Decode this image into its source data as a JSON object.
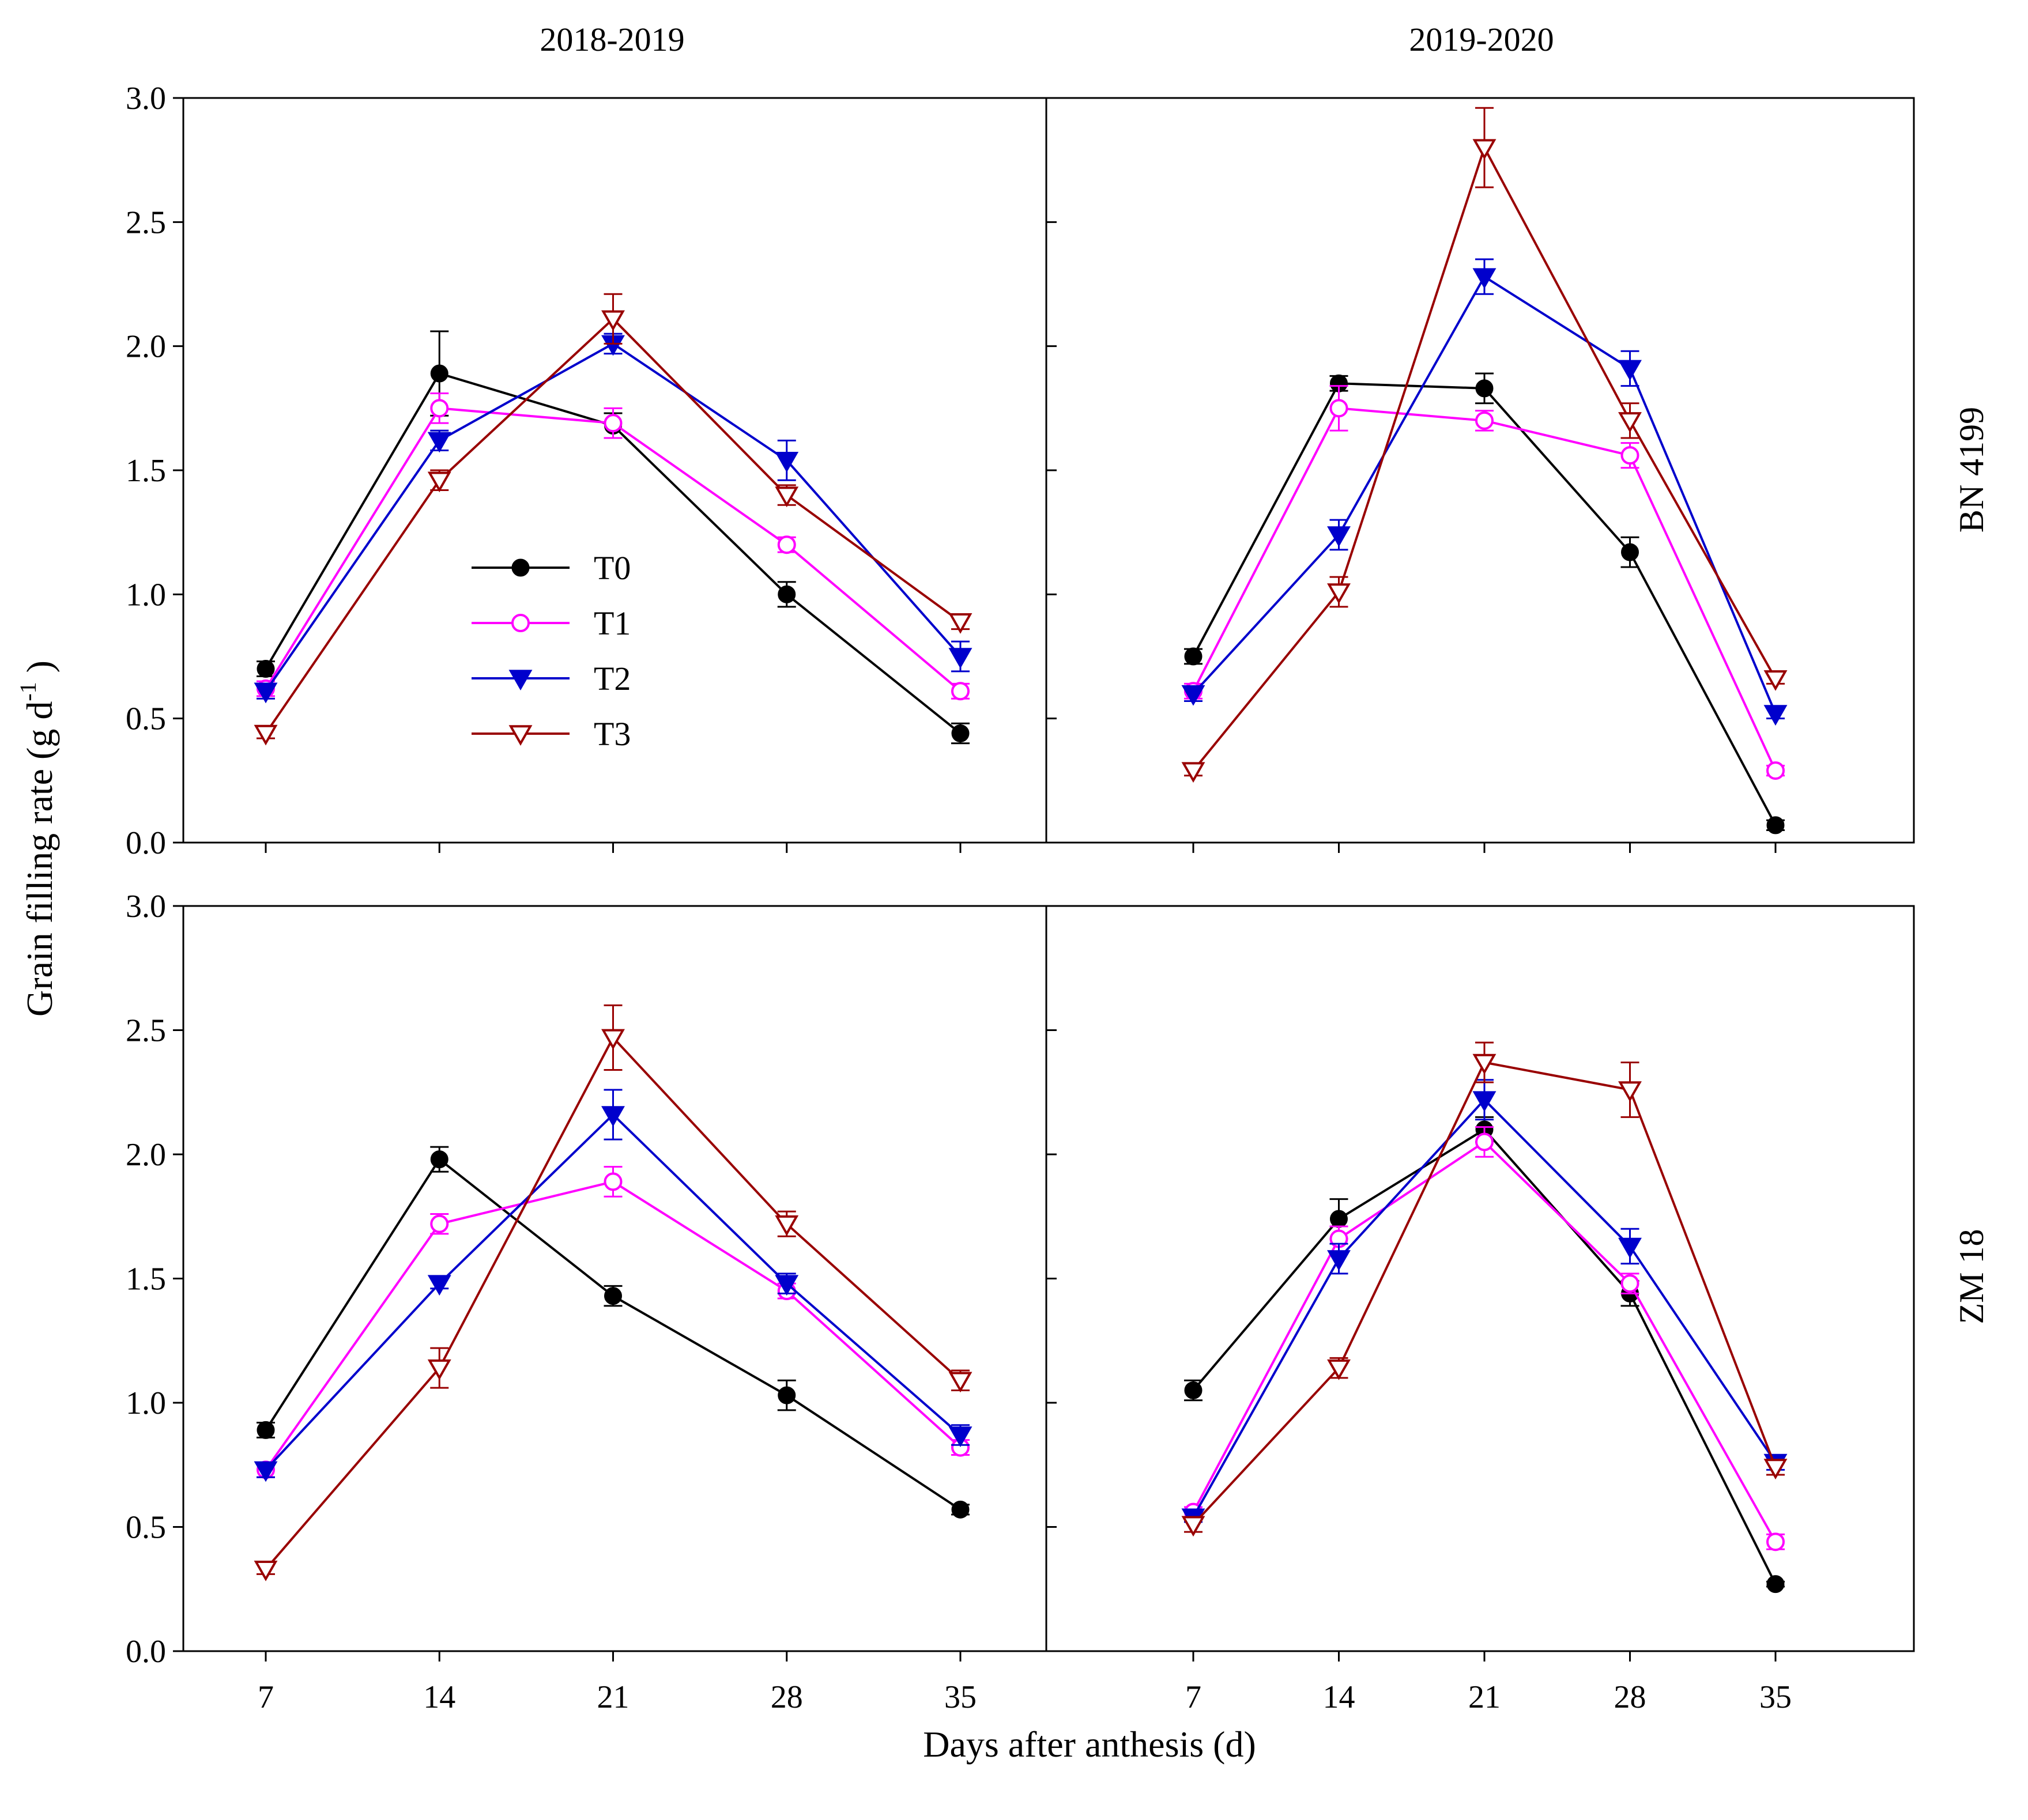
{
  "chart_data": {
    "type": "line",
    "column_titles": [
      "2018-2019",
      "2019-2020"
    ],
    "row_labels": [
      "BN 4199",
      "ZM 18"
    ],
    "xlabel": "Days after anthesis (d)",
    "ylabel_main": "Grain filling rate (g d",
    "ylabel_sup": "-1",
    "ylabel_close": ")",
    "x_ticks": [
      "7",
      "14",
      "21",
      "28",
      "35"
    ],
    "y_ticks": [
      "0.0",
      "0.5",
      "1.0",
      "1.5",
      "2.0",
      "2.5",
      "3.0"
    ],
    "ylim": [
      0,
      3
    ],
    "legend": [
      "T0",
      "T1",
      "T2",
      "T3"
    ],
    "legend_placement": "inside top-left panel, center-left",
    "series_styles": [
      {
        "name": "T0",
        "color": "#000000",
        "marker": "filled-circle"
      },
      {
        "name": "T1",
        "color": "#ff00ff",
        "marker": "open-circle"
      },
      {
        "name": "T2",
        "color": "#0000cc",
        "marker": "filled-triangle-down"
      },
      {
        "name": "T3",
        "color": "#990000",
        "marker": "open-triangle-down"
      }
    ],
    "panels": [
      {
        "row": "BN 4199",
        "column": "2018-2019",
        "x": [
          7,
          14,
          21,
          28,
          35
        ],
        "series": [
          {
            "name": "T0",
            "values": [
              0.7,
              1.89,
              1.68,
              1.0,
              0.44
            ],
            "errors": [
              0.03,
              0.17,
              0.05,
              0.05,
              0.04
            ]
          },
          {
            "name": "T1",
            "values": [
              0.62,
              1.75,
              1.69,
              1.2,
              0.61
            ],
            "errors": [
              0.03,
              0.06,
              0.06,
              0.03,
              0.03
            ]
          },
          {
            "name": "T2",
            "values": [
              0.61,
              1.62,
              2.01,
              1.54,
              0.75
            ],
            "errors": [
              0.03,
              0.04,
              0.04,
              0.08,
              0.06
            ]
          },
          {
            "name": "T3",
            "values": [
              0.44,
              1.46,
              2.11,
              1.4,
              0.89
            ],
            "errors": [
              0.02,
              0.04,
              0.1,
              0.04,
              0.03
            ]
          }
        ]
      },
      {
        "row": "BN 4199",
        "column": "2019-2020",
        "x": [
          7,
          14,
          21,
          28,
          35
        ],
        "series": [
          {
            "name": "T0",
            "values": [
              0.75,
              1.85,
              1.83,
              1.17,
              0.07
            ],
            "errors": [
              0.03,
              0.03,
              0.06,
              0.06,
              0.02
            ]
          },
          {
            "name": "T1",
            "values": [
              0.61,
              1.75,
              1.7,
              1.56,
              0.29
            ],
            "errors": [
              0.03,
              0.09,
              0.04,
              0.05,
              0.02
            ]
          },
          {
            "name": "T2",
            "values": [
              0.6,
              1.24,
              2.28,
              1.91,
              0.52
            ],
            "errors": [
              0.03,
              0.06,
              0.07,
              0.07,
              0.02
            ]
          },
          {
            "name": "T3",
            "values": [
              0.29,
              1.01,
              2.8,
              1.7,
              0.66
            ],
            "errors": [
              0.02,
              0.06,
              0.16,
              0.07,
              0.02
            ]
          }
        ]
      },
      {
        "row": "ZM 18",
        "column": "2018-2019",
        "x": [
          7,
          14,
          21,
          28,
          35
        ],
        "series": [
          {
            "name": "T0",
            "values": [
              0.89,
              1.98,
              1.43,
              1.03,
              0.57
            ],
            "errors": [
              0.03,
              0.05,
              0.04,
              0.06,
              0.02
            ]
          },
          {
            "name": "T1",
            "values": [
              0.73,
              1.72,
              1.89,
              1.45,
              0.82
            ],
            "errors": [
              0.03,
              0.04,
              0.06,
              0.03,
              0.03
            ]
          },
          {
            "name": "T2",
            "values": [
              0.73,
              1.48,
              2.16,
              1.48,
              0.87
            ],
            "errors": [
              0.03,
              0.02,
              0.1,
              0.04,
              0.04
            ]
          },
          {
            "name": "T3",
            "values": [
              0.33,
              1.14,
              2.47,
              1.72,
              1.09
            ],
            "errors": [
              0.02,
              0.08,
              0.13,
              0.05,
              0.04
            ]
          }
        ]
      },
      {
        "row": "ZM 18",
        "column": "2019-2020",
        "x": [
          7,
          14,
          21,
          28,
          35
        ],
        "series": [
          {
            "name": "T0",
            "values": [
              1.05,
              1.74,
              2.1,
              1.44,
              0.27
            ],
            "errors": [
              0.04,
              0.08,
              0.05,
              0.05,
              0.01
            ]
          },
          {
            "name": "T1",
            "values": [
              0.56,
              1.66,
              2.05,
              1.48,
              0.44
            ],
            "errors": [
              0.02,
              0.05,
              0.06,
              0.04,
              0.03
            ]
          },
          {
            "name": "T2",
            "values": [
              0.54,
              1.58,
              2.22,
              1.63,
              0.76
            ],
            "errors": [
              0.02,
              0.06,
              0.08,
              0.07,
              0.03
            ]
          },
          {
            "name": "T3",
            "values": [
              0.51,
              1.14,
              2.37,
              2.26,
              0.74
            ],
            "errors": [
              0.03,
              0.04,
              0.08,
              0.11,
              0.03
            ]
          }
        ]
      }
    ]
  }
}
